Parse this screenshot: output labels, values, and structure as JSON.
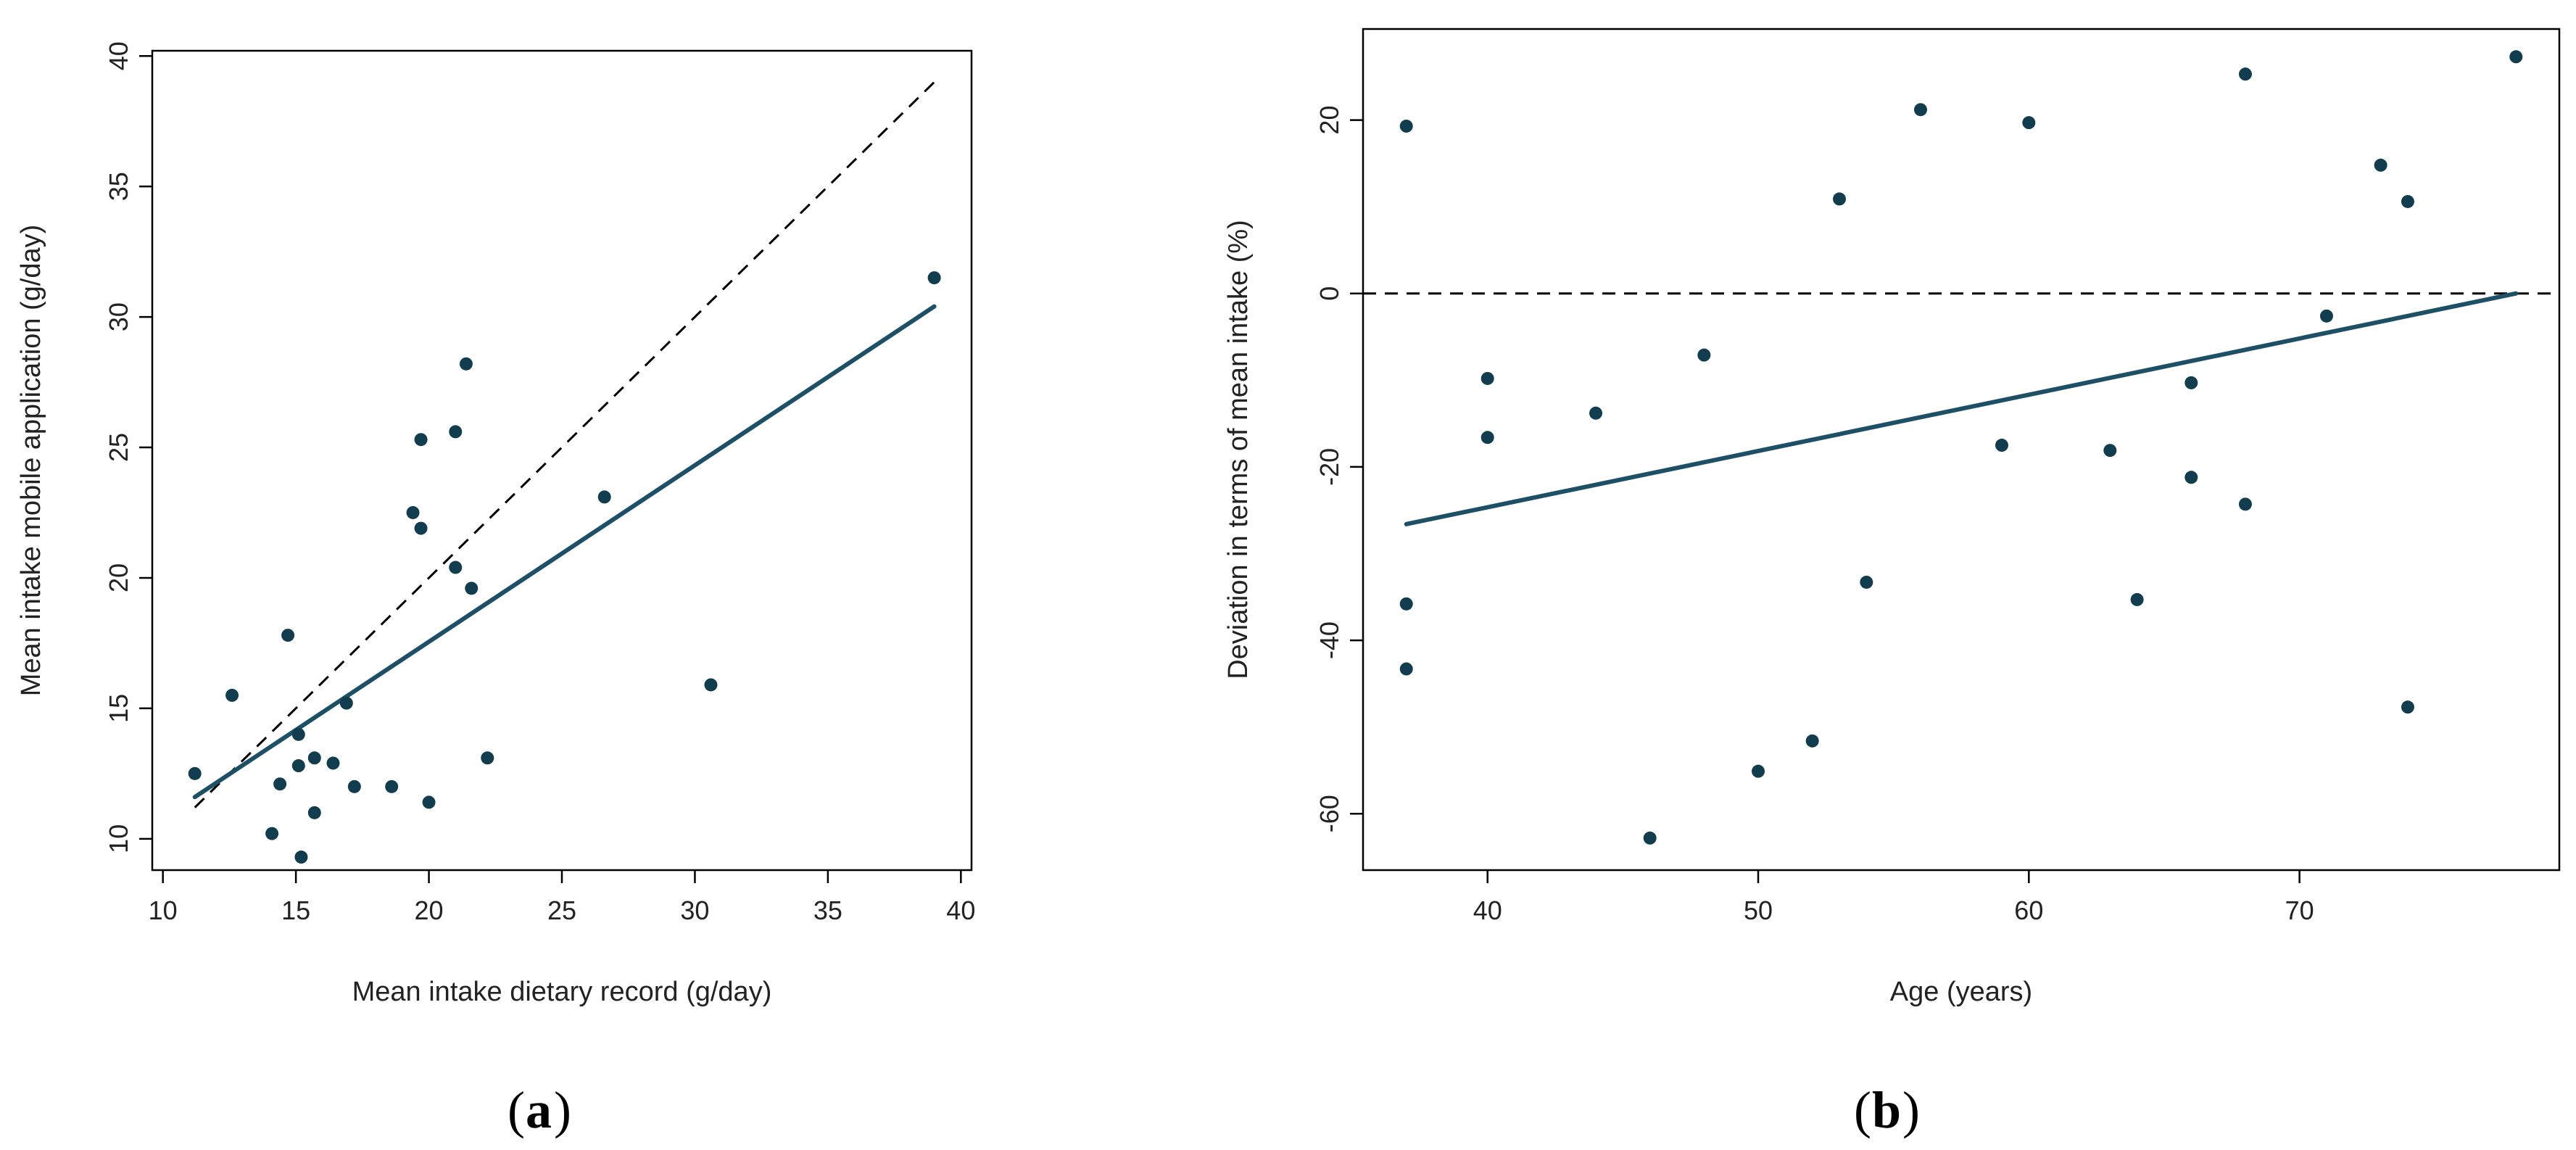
{
  "chart_data": [
    {
      "type": "scatter",
      "panel_label": "a",
      "xlabel": "Mean intake dietary record (g/day)",
      "ylabel": "Mean intake mobile application (g/day)",
      "xlim": [
        9.6,
        40.4
      ],
      "ylim": [
        8.8,
        40.2
      ],
      "xticks": [
        10,
        15,
        20,
        25,
        30,
        35,
        40
      ],
      "yticks": [
        10,
        15,
        20,
        25,
        30,
        35,
        40
      ],
      "points": [
        {
          "x": 11.2,
          "y": 12.5
        },
        {
          "x": 12.6,
          "y": 15.5
        },
        {
          "x": 14.1,
          "y": 10.2
        },
        {
          "x": 14.4,
          "y": 12.1
        },
        {
          "x": 14.7,
          "y": 17.8
        },
        {
          "x": 15.1,
          "y": 14.0
        },
        {
          "x": 15.1,
          "y": 12.8
        },
        {
          "x": 15.2,
          "y": 9.3
        },
        {
          "x": 15.7,
          "y": 13.1
        },
        {
          "x": 15.7,
          "y": 11.0
        },
        {
          "x": 16.4,
          "y": 12.9
        },
        {
          "x": 16.9,
          "y": 15.2
        },
        {
          "x": 17.2,
          "y": 12.0
        },
        {
          "x": 18.6,
          "y": 12.0
        },
        {
          "x": 19.4,
          "y": 22.5
        },
        {
          "x": 19.7,
          "y": 25.3
        },
        {
          "x": 19.7,
          "y": 21.9
        },
        {
          "x": 20.0,
          "y": 11.4
        },
        {
          "x": 21.0,
          "y": 25.6
        },
        {
          "x": 21.0,
          "y": 20.4
        },
        {
          "x": 21.4,
          "y": 28.2
        },
        {
          "x": 21.6,
          "y": 19.6
        },
        {
          "x": 22.2,
          "y": 13.1
        },
        {
          "x": 26.6,
          "y": 23.1
        },
        {
          "x": 30.6,
          "y": 15.9
        },
        {
          "x": 39.0,
          "y": 31.5
        }
      ],
      "fit_line": {
        "x": [
          11.2,
          39.0
        ],
        "y": [
          11.6,
          30.4
        ]
      },
      "reference_line": {
        "style": "dashed",
        "x": [
          11.2,
          39.0
        ],
        "y": [
          11.2,
          39.0
        ]
      }
    },
    {
      "type": "scatter",
      "panel_label": "b",
      "xlabel": "Age (years)",
      "ylabel": "Deviation in terms of mean intake (%)",
      "xlim": [
        35.4,
        79.6
      ],
      "ylim": [
        -66.5,
        30.5
      ],
      "xticks": [
        40,
        50,
        60,
        70
      ],
      "yticks": [
        -60,
        -40,
        -20,
        0,
        20
      ],
      "points": [
        {
          "x": 37,
          "y": 19.3
        },
        {
          "x": 37,
          "y": -35.8
        },
        {
          "x": 37,
          "y": -43.3
        },
        {
          "x": 40,
          "y": -9.8
        },
        {
          "x": 40,
          "y": -16.6
        },
        {
          "x": 44,
          "y": -13.8
        },
        {
          "x": 46,
          "y": -62.8
        },
        {
          "x": 48,
          "y": -7.1
        },
        {
          "x": 50,
          "y": -55.1
        },
        {
          "x": 52,
          "y": -51.6
        },
        {
          "x": 53,
          "y": 10.9
        },
        {
          "x": 54,
          "y": -33.3
        },
        {
          "x": 56,
          "y": 21.2
        },
        {
          "x": 59,
          "y": -17.5
        },
        {
          "x": 60,
          "y": 19.7
        },
        {
          "x": 63,
          "y": -18.1
        },
        {
          "x": 64,
          "y": -35.3
        },
        {
          "x": 66,
          "y": -10.3
        },
        {
          "x": 66,
          "y": -21.2
        },
        {
          "x": 68,
          "y": 25.3
        },
        {
          "x": 68,
          "y": -24.3
        },
        {
          "x": 71,
          "y": -2.6
        },
        {
          "x": 73,
          "y": 14.8
        },
        {
          "x": 74,
          "y": 10.6
        },
        {
          "x": 74,
          "y": -47.7
        },
        {
          "x": 78,
          "y": 27.3
        }
      ],
      "fit_line": {
        "x": [
          37,
          78
        ],
        "y": [
          -26.6,
          0.0
        ]
      },
      "reference_line": {
        "style": "dashed",
        "y": 0
      }
    }
  ]
}
